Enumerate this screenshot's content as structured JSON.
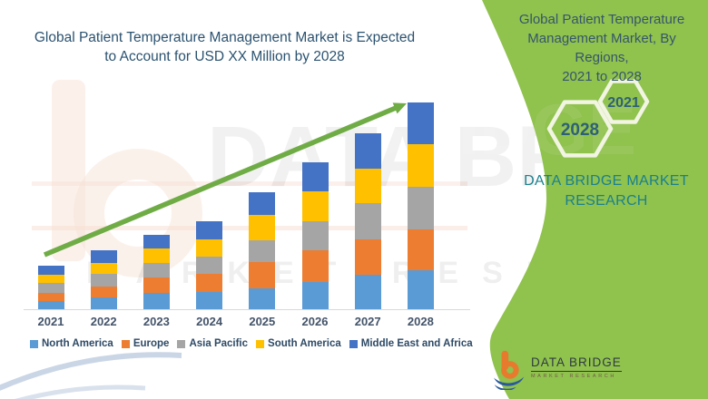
{
  "left_panel": {
    "title_lines": [
      "Global Patient Temperature Management Market is Expected",
      "to Account for USD XX Million by 2028"
    ]
  },
  "right_panel": {
    "title_lines": [
      "Global Patient Temperature",
      "Management Market, By Regions,",
      "2021 to 2028"
    ],
    "hexagon_small_label": "2021",
    "hexagon_large_label": "2028",
    "brand_lines": [
      "DATA BRIDGE MARKET",
      "RESEARCH"
    ],
    "panel_color": "#90C24E",
    "hexagon_outline_color": "#F1F5E2",
    "hexagon_text_color": "#2E6076",
    "brand_text_color": "#1A808E"
  },
  "footer_logo": {
    "name": "DATA BRIDGE",
    "subtitle": "MARKET RESEARCH",
    "icon_orange": "#E87A2E",
    "icon_blue": "#2B5A9B"
  },
  "watermark": {
    "text_big": "DATA BRIDGE",
    "text_small": "MARKET RESEARCH"
  },
  "chart_data": {
    "type": "bar",
    "stacked": true,
    "title": "Global Patient Temperature Management Market is Expected to Account for USD XX Million by 2028",
    "categories": [
      "2021",
      "2022",
      "2023",
      "2024",
      "2025",
      "2026",
      "2027",
      "2028"
    ],
    "series": [
      {
        "name": "North America",
        "color": "#5B9BD5",
        "values": [
          9,
          13,
          18,
          19,
          23,
          30,
          38,
          43
        ]
      },
      {
        "name": "Europe",
        "color": "#ED7D31",
        "values": [
          9,
          12,
          17,
          20,
          29,
          35,
          39,
          45
        ]
      },
      {
        "name": "Asia Pacific",
        "color": "#A5A5A5",
        "values": [
          11,
          14,
          16,
          19,
          24,
          32,
          40,
          47
        ]
      },
      {
        "name": "South America",
        "color": "#FFC000",
        "values": [
          9,
          12,
          16,
          19,
          28,
          33,
          38,
          47
        ]
      },
      {
        "name": "Middle East and Africa",
        "color": "#4472C4",
        "values": [
          10,
          14,
          15,
          20,
          25,
          32,
          39,
          46
        ]
      }
    ],
    "stack_totals": [
      48,
      65,
      82,
      97,
      129,
      162,
      194,
      228
    ],
    "values_note": "actual USD values undisclosed (shown as XX); series values are relative estimates read from bar heights",
    "y_axis_visible": false,
    "grid": false,
    "legend_position": "bottom",
    "trend_arrow": true,
    "trend_arrow_color": "#6FAC46",
    "axis_label_color": "#44546A"
  }
}
